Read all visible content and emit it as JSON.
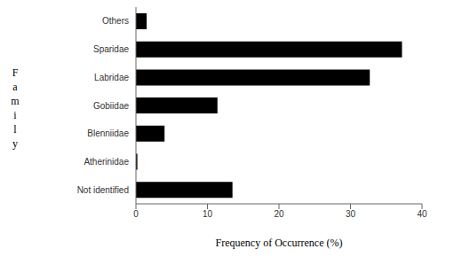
{
  "chart_data": {
    "type": "bar",
    "orientation": "horizontal",
    "categories": [
      "Others",
      "Sparidae",
      "Labridae",
      "Gobiidae",
      "Blenniidae",
      "Atherinidae",
      "Not identified"
    ],
    "values": [
      1.5,
      37.2,
      32.7,
      11.4,
      4.0,
      0.2,
      13.5
    ],
    "color": "#000000",
    "xlim": [
      0,
      40
    ],
    "xticks": [
      0,
      10,
      20,
      30,
      40
    ],
    "x_label": "Frequency of Occurrence (%)",
    "y_label": "Family",
    "grid": false
  }
}
